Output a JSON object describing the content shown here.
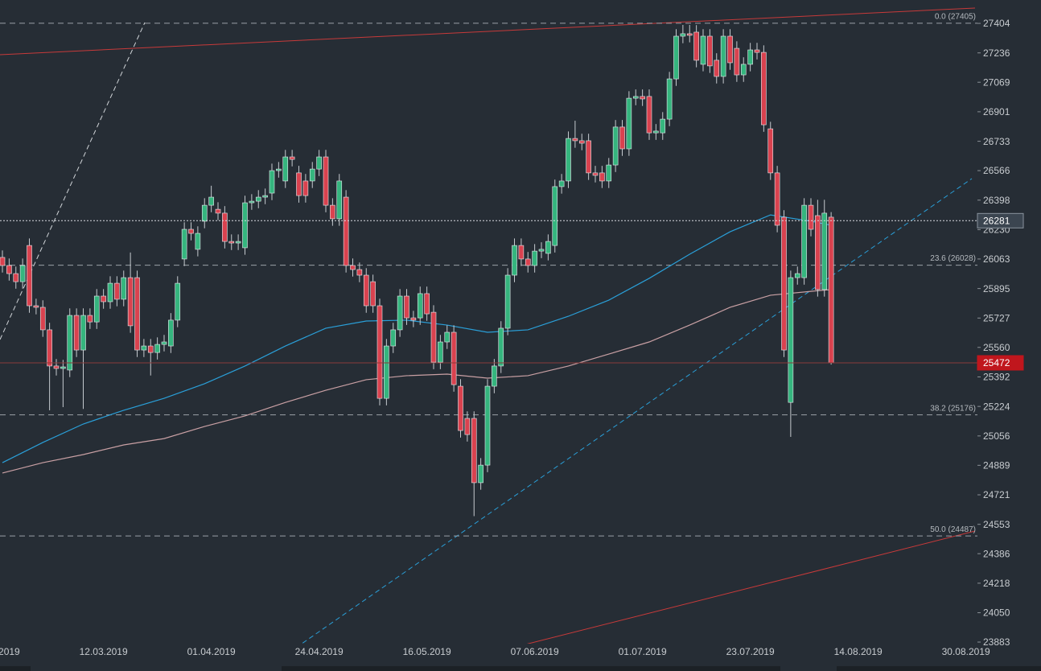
{
  "chart_data": {
    "type": "candlestick",
    "categories": [
      null,
      "2019",
      null,
      null,
      null,
      null,
      null,
      null,
      null,
      null,
      null,
      null,
      null,
      null,
      null,
      "12.03.2019",
      null,
      null,
      null,
      null,
      null,
      null,
      null,
      null,
      null,
      null,
      null,
      null,
      null,
      null,
      null,
      "01.04.2019",
      null,
      null,
      null,
      null,
      null,
      null,
      null,
      null,
      null,
      null,
      null,
      null,
      null,
      null,
      null,
      "24.04.2019",
      null,
      null,
      null,
      null,
      null,
      null,
      null,
      null,
      null,
      null,
      null,
      null,
      null,
      null,
      null,
      "16.05.2019",
      null,
      null,
      null,
      null,
      null,
      null,
      null,
      null,
      null,
      null,
      null,
      null,
      null,
      null,
      null,
      "07.06.2019",
      null,
      null,
      null,
      null,
      null,
      null,
      null,
      null,
      null,
      null,
      null,
      null,
      null,
      null,
      null,
      "01.07.2019",
      null,
      null,
      null,
      null,
      null,
      null,
      null,
      null,
      null,
      null,
      null,
      null,
      null,
      null,
      null,
      "23.07.2019",
      null,
      null,
      null,
      null,
      null,
      null,
      null,
      null,
      null,
      null,
      null,
      null,
      null,
      null,
      null,
      "14.08.2019",
      null,
      null,
      null,
      null,
      null,
      null,
      null,
      null,
      null,
      null,
      null,
      null,
      null,
      null,
      null,
      "30.08.2019"
    ],
    "open": [
      26072,
      26026,
      25980,
      25934,
      26140,
      25797,
      25788,
      25660,
      25454,
      25440,
      25431,
      25742,
      25545,
      25742,
      25705,
      25852,
      25820,
      25925,
      25834,
      25957,
      25957,
      25545,
      25568,
      25531,
      25577,
      25568,
      25715,
      26063,
      26232,
      26118,
      26278,
      26369,
      26346,
      26324,
      26163,
      26154,
      26127,
      26383,
      26392,
      26415,
      26438,
      26566,
      26507,
      26644,
      26553,
      26507,
      26507,
      26575,
      26644,
      26369,
      26292,
      26415,
      26026,
      26003,
      25971,
      25934,
      25797,
      25270,
      25568,
      25660,
      25852,
      25728,
      25728,
      25866,
      25760,
      25476,
      25591,
      25646,
      25339,
      25156,
      25156,
      24790,
      24890,
      25339,
      25454,
      25669,
      25971,
      26140,
      26063,
      26026,
      26108,
      26095,
      26140,
      26475,
      26507,
      26749,
      26736,
      26736,
      26553,
      26553,
      26507,
      26598,
      26814,
      26690,
      26978,
      26988,
      26988,
      26781,
      26781,
      26859,
      27088,
      27331,
      27345,
      27354,
      27171,
      27331,
      27194,
      27102,
      27331,
      27262,
      27111,
      27171,
      27253,
      27239,
      26804,
      26553,
      26301,
      25247,
      25957,
      25957,
      26369,
      26310,
      25889,
      26301,
      null,
      null,
      null,
      null,
      null,
      null,
      null,
      null,
      null,
      null,
      null,
      null,
      null,
      null,
      null,
      null,
      null,
      null,
      null,
      null
    ],
    "high": [
      26112,
      26066,
      26020,
      26066,
      26180,
      25837,
      25828,
      25700,
      25494,
      25489,
      25782,
      25782,
      25782,
      25782,
      25892,
      25892,
      25965,
      25965,
      25997,
      26100,
      25997,
      25608,
      25608,
      25617,
      25631,
      25755,
      25965,
      26272,
      26272,
      26249,
      26409,
      26480,
      26386,
      26364,
      26203,
      26203,
      26423,
      26432,
      26455,
      26464,
      26606,
      26615,
      26684,
      26684,
      26593,
      26547,
      26615,
      26684,
      26684,
      26409,
      26547,
      26455,
      26066,
      26043,
      26011,
      25974,
      25837,
      25608,
      25700,
      25892,
      25892,
      25768,
      25906,
      25906,
      25800,
      25631,
      25686,
      25686,
      25379,
      25196,
      25196,
      24930,
      25379,
      25494,
      25709,
      26011,
      26180,
      26180,
      26103,
      26148,
      26158,
      26203,
      26515,
      26547,
      26789,
      26850,
      26776,
      26776,
      26593,
      26593,
      26638,
      26854,
      26854,
      27018,
      27028,
      27028,
      27028,
      26831,
      26899,
      27128,
      27371,
      27395,
      27395,
      27394,
      27371,
      27371,
      27234,
      27371,
      27371,
      27302,
      27211,
      27293,
      27293,
      27279,
      26844,
      26593,
      26341,
      25997,
      26020,
      26409,
      26409,
      26400,
      26400,
      26330,
      null,
      null,
      null,
      null,
      null,
      null,
      null,
      null,
      null,
      null,
      null,
      null,
      null,
      null,
      null,
      null,
      null,
      null,
      null,
      null
    ],
    "low": [
      25986,
      25940,
      25894,
      25894,
      25757,
      25748,
      25620,
      25202,
      25400,
      25220,
      25391,
      25505,
      25210,
      25665,
      25665,
      25780,
      25780,
      25794,
      25794,
      25643,
      25505,
      25505,
      25400,
      25491,
      25537,
      25528,
      25675,
      26023,
      26169,
      26078,
      26238,
      26329,
      26284,
      26123,
      26114,
      26114,
      26087,
      26343,
      26352,
      26375,
      26398,
      26526,
      26467,
      26590,
      26384,
      26384,
      26467,
      26535,
      26329,
      26252,
      26252,
      25986,
      25963,
      25931,
      25757,
      25757,
      25230,
      25230,
      25528,
      25620,
      25688,
      25675,
      25688,
      25711,
      25436,
      25436,
      25551,
      25308,
      25047,
      25024,
      24600,
      24750,
      24850,
      25299,
      25414,
      25629,
      25931,
      26023,
      25986,
      25986,
      26068,
      26055,
      26100,
      26435,
      26467,
      26696,
      26682,
      26513,
      26499,
      26467,
      26467,
      26558,
      26650,
      26650,
      26938,
      26934,
      26741,
      26741,
      26741,
      26819,
      27048,
      27291,
      27296,
      27154,
      27131,
      27122,
      27062,
      27062,
      27140,
      27071,
      27071,
      27131,
      27199,
      26787,
      26513,
      26215,
      25505,
      25051,
      25917,
      25917,
      26192,
      25849,
      25849,
      25462,
      null,
      null,
      null,
      null,
      null,
      null,
      null,
      null,
      null,
      null,
      null,
      null,
      null,
      null,
      null,
      null,
      null,
      null,
      null,
      null
    ],
    "close": [
      26026,
      25980,
      25934,
      26026,
      25797,
      25788,
      25660,
      25454,
      25440,
      25449,
      25742,
      25545,
      25742,
      25705,
      25852,
      25820,
      25925,
      25834,
      25957,
      25683,
      25545,
      25568,
      25531,
      25577,
      25591,
      25715,
      25925,
      26232,
      26209,
      26209,
      26369,
      26415,
      26324,
      26163,
      26154,
      26163,
      26383,
      26392,
      26415,
      26424,
      26566,
      26575,
      26644,
      26630,
      26424,
      26424,
      26575,
      26644,
      26369,
      26292,
      26507,
      26026,
      26003,
      25971,
      25797,
      25797,
      25270,
      25568,
      25660,
      25852,
      25728,
      25715,
      25866,
      25751,
      25476,
      25591,
      25646,
      25348,
      25087,
      25064,
      24790,
      24890,
      25339,
      25454,
      25669,
      25971,
      26140,
      26063,
      26026,
      26108,
      26118,
      26163,
      26475,
      26507,
      26749,
      26736,
      26722,
      26553,
      26539,
      26507,
      26598,
      26814,
      26690,
      26978,
      26988,
      26974,
      26781,
      26791,
      26859,
      27088,
      27331,
      27345,
      27336,
      27194,
      27331,
      27162,
      27102,
      27331,
      27180,
      27111,
      27171,
      27253,
      27239,
      26827,
      26553,
      26255,
      25545,
      25957,
      25980,
      26369,
      26232,
      25889,
      26324,
      25472,
      null,
      null,
      null,
      null,
      null,
      null,
      null,
      null,
      null,
      null,
      null,
      null,
      null,
      null,
      null,
      null,
      null,
      null,
      null,
      null
    ],
    "up_color": "#35b57e",
    "down_color": "#d9424f",
    "ylim": [
      23874,
      27537
    ],
    "yticks": [
      27404,
      27236,
      27069,
      26901,
      26733,
      26566,
      26398,
      26230,
      26063,
      25895,
      25727,
      25560,
      25392,
      25224,
      25056,
      24889,
      24721,
      24553,
      24386,
      24218,
      24050,
      23883
    ],
    "moving_averages": [
      {
        "color": "#2a9fd8",
        "x": [
          0,
          6,
          12,
          18,
          24,
          30,
          36,
          42,
          48,
          54,
          60,
          66,
          72,
          78,
          84,
          90,
          96,
          102,
          108,
          114,
          120,
          123
        ],
        "values": [
          24904,
          25019,
          25124,
          25202,
          25270,
          25353,
          25454,
          25568,
          25669,
          25710,
          25715,
          25687,
          25646,
          25660,
          25737,
          25829,
          25953,
          26090,
          26218,
          26314,
          26278,
          26255
        ]
      },
      {
        "color": "#c9a0a4",
        "x": [
          0,
          6,
          12,
          18,
          24,
          30,
          36,
          42,
          48,
          54,
          60,
          66,
          72,
          78,
          84,
          90,
          96,
          102,
          108,
          114,
          120,
          123
        ],
        "values": [
          24845,
          24904,
          24950,
          25005,
          25041,
          25110,
          25170,
          25247,
          25316,
          25376,
          25399,
          25408,
          25385,
          25399,
          25454,
          25522,
          25591,
          25687,
          25788,
          25857,
          25879,
          25889
        ]
      }
    ],
    "fib_levels": [
      {
        "label": "0.0 (27405)",
        "value": 27405
      },
      {
        "label": "23.6 (26028)",
        "value": 26028
      },
      {
        "label": "38.2 (25176)",
        "value": 25176
      },
      {
        "label": "50.0 (24487)",
        "value": 24487
      }
    ],
    "price_lines": [
      {
        "value": 26281,
        "color": "#d8dce0",
        "box_color": "#3b4550"
      },
      {
        "value": 25472,
        "color": "#8a3a3a",
        "box_color": "#c0161d"
      }
    ]
  }
}
